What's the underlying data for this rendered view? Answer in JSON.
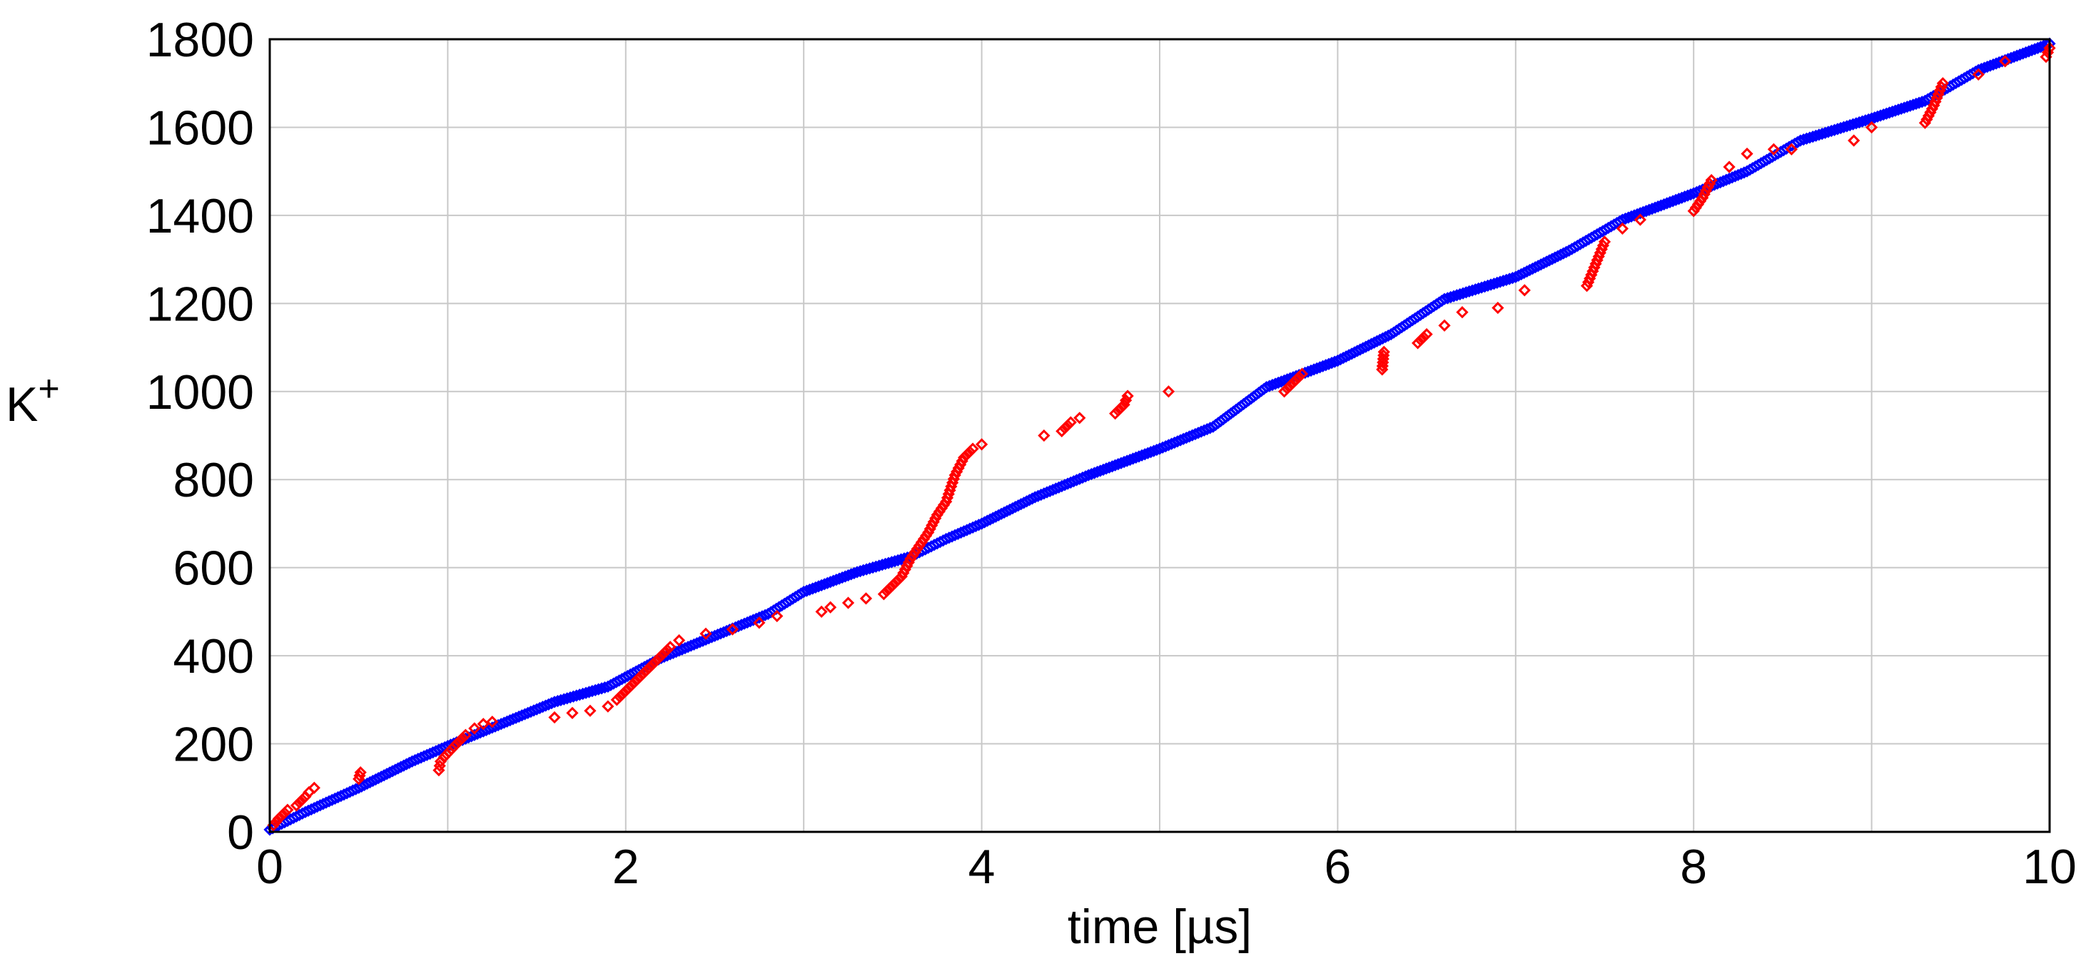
{
  "chart_data": {
    "type": "scatter",
    "xlabel": "time [µs]",
    "ylabel": "K",
    "ylabel_superscript": "+",
    "xlim": [
      0,
      10
    ],
    "ylim": [
      0,
      1800
    ],
    "xticks": [
      0,
      2,
      4,
      6,
      8,
      10
    ],
    "yticks": [
      0,
      200,
      400,
      600,
      800,
      1000,
      1200,
      1400,
      1600,
      1800
    ],
    "xgrid_step": 1,
    "ygrid_step": 200,
    "grid": true,
    "legend": "none",
    "series": [
      {
        "color": "#0000ff",
        "marker": "diamond",
        "x": [
          0,
          0.2,
          0.5,
          0.8,
          1.0,
          1.3,
          1.6,
          1.9,
          2.2,
          2.5,
          2.8,
          3.0,
          3.3,
          3.6,
          3.8,
          4.0,
          4.3,
          4.6,
          5.0,
          5.3,
          5.6,
          6.0,
          6.3,
          6.6,
          7.0,
          7.3,
          7.6,
          8.0,
          8.3,
          8.6,
          9.0,
          9.3,
          9.6,
          10.0
        ],
        "y": [
          5,
          45,
          100,
          160,
          195,
          245,
          295,
          330,
          395,
          445,
          495,
          545,
          590,
          625,
          665,
          700,
          760,
          810,
          870,
          920,
          1010,
          1070,
          1130,
          1210,
          1260,
          1320,
          1390,
          1450,
          1500,
          1570,
          1620,
          1660,
          1730,
          1790
        ]
      },
      {
        "color": "#ff0000",
        "marker": "diamond",
        "x": [
          0.02,
          0.05,
          0.1,
          0.15,
          0.2,
          0.22,
          0.25,
          0.5,
          0.51,
          0.95,
          0.96,
          0.98,
          1.05,
          1.1,
          1.15,
          1.2,
          1.25,
          1.6,
          1.7,
          1.8,
          1.9,
          1.95,
          2.0,
          2.05,
          2.1,
          2.15,
          2.2,
          2.25,
          2.3,
          2.45,
          2.6,
          2.75,
          2.85,
          3.1,
          3.15,
          3.25,
          3.35,
          3.45,
          3.5,
          3.55,
          3.6,
          3.65,
          3.7,
          3.75,
          3.8,
          3.85,
          3.9,
          3.95,
          4.0,
          4.35,
          4.45,
          4.5,
          4.55,
          4.75,
          4.8,
          4.82,
          5.05,
          5.7,
          5.75,
          5.8,
          6.25,
          6.26,
          6.45,
          6.5,
          6.6,
          6.7,
          6.9,
          7.05,
          7.4,
          7.45,
          7.5,
          7.6,
          7.7,
          8.0,
          8.05,
          8.1,
          8.2,
          8.3,
          8.45,
          8.55,
          8.9,
          9.0,
          9.3,
          9.35,
          9.4,
          9.6,
          9.75,
          9.98,
          10.0
        ],
        "y": [
          15,
          30,
          50,
          60,
          80,
          90,
          100,
          120,
          135,
          140,
          160,
          170,
          200,
          220,
          235,
          245,
          250,
          260,
          270,
          275,
          285,
          300,
          320,
          340,
          360,
          380,
          400,
          420,
          435,
          450,
          460,
          475,
          490,
          500,
          510,
          520,
          530,
          540,
          560,
          580,
          620,
          650,
          680,
          720,
          750,
          810,
          850,
          870,
          880,
          900,
          910,
          930,
          940,
          950,
          970,
          990,
          1000,
          1000,
          1020,
          1040,
          1050,
          1090,
          1110,
          1130,
          1150,
          1180,
          1190,
          1230,
          1240,
          1290,
          1340,
          1370,
          1390,
          1410,
          1440,
          1480,
          1510,
          1540,
          1550,
          1550,
          1570,
          1600,
          1610,
          1650,
          1700,
          1720,
          1750,
          1760,
          1780
        ]
      }
    ]
  }
}
